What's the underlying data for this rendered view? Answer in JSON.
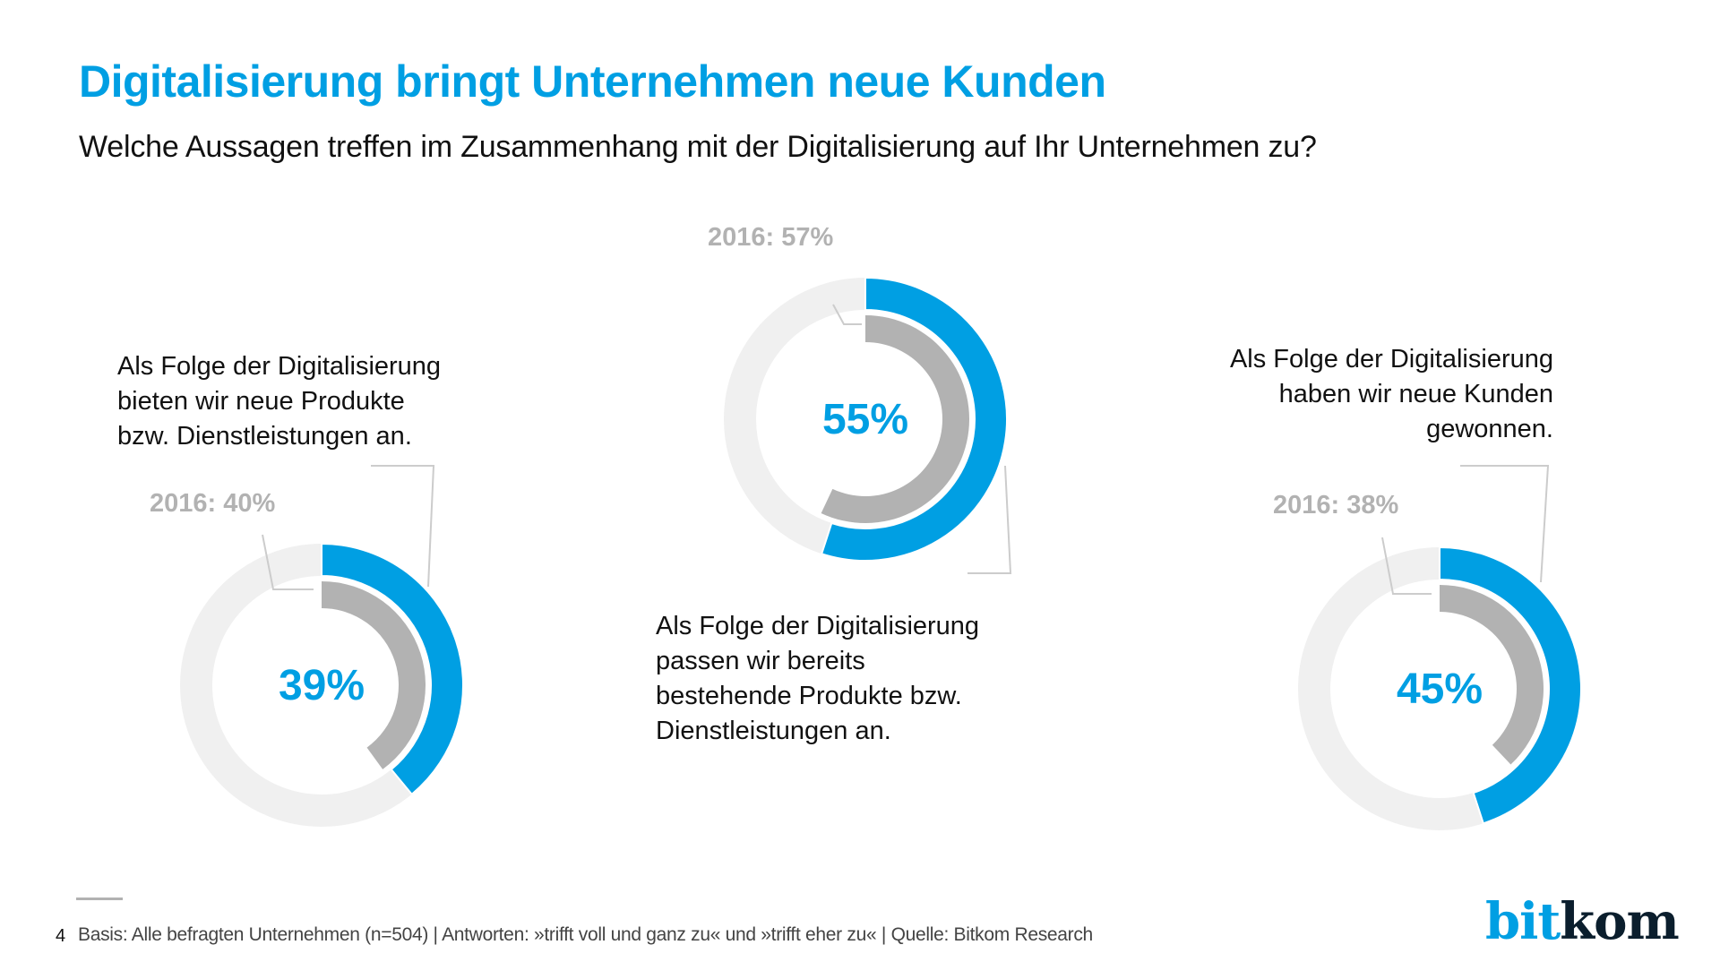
{
  "header": {
    "title": "Digitalisierung bringt Unternehmen neue Kunden",
    "subtitle": "Welche Aussagen treffen im Zusammenhang mit der Digitalisierung auf Ihr Unternehmen zu?"
  },
  "colors": {
    "accent": "#009fe3",
    "previous": "#b2b2b2",
    "track": "#f0f0f0",
    "leader": "#cccccc"
  },
  "chart_data": {
    "type": "pie",
    "subtype": "donut-comparison",
    "title": "Digitalisierung bringt Unternehmen neue Kunden",
    "series": [
      {
        "id": "neue-produkte",
        "label_lines": [
          "Als Folge der Digitalisierung",
          "bieten wir neue Produkte",
          "bzw. Dienstleistungen an."
        ],
        "value": 39,
        "value_label": "39%",
        "previous_year": 2016,
        "previous_value": 40,
        "previous_label": "2016: 40%"
      },
      {
        "id": "bestehende-produkte",
        "label_lines": [
          "Als Folge der Digitalisierung",
          "passen wir bereits",
          "bestehende Produkte bzw.",
          "Dienstleistungen an."
        ],
        "value": 55,
        "value_label": "55%",
        "previous_year": 2016,
        "previous_value": 57,
        "previous_label": "2016: 57%"
      },
      {
        "id": "neue-kunden",
        "label_lines": [
          "Als Folge der Digitalisierung",
          "haben wir neue Kunden",
          "gewonnen."
        ],
        "value": 45,
        "value_label": "45%",
        "previous_year": 2016,
        "previous_value": 38,
        "previous_label": "2016: 38%"
      }
    ],
    "unit": "%",
    "max": 100
  },
  "footer": {
    "page_number": "4",
    "note": "Basis: Alle befragten Unternehmen (n=504) | Antworten: »trifft voll und ganz zu« und »trifft eher zu« | Quelle: Bitkom Research",
    "logo_part1": "bit",
    "logo_part2": "kom"
  }
}
